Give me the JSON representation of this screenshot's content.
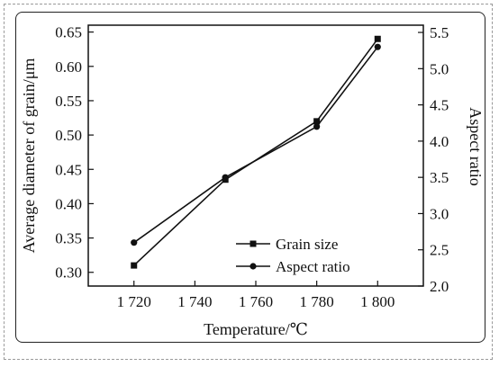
{
  "chart_data": {
    "type": "line",
    "title": "",
    "xlabel": "Temperature/℃",
    "ylabel_left": "Average diameter of grain/μm",
    "ylabel_right": "Aspect ratio",
    "x_categories": [
      1720,
      1750,
      1780,
      1800
    ],
    "x_ticks": [
      1720,
      1740,
      1760,
      1780,
      1800
    ],
    "x_tick_labels": [
      "1 720",
      "1 740",
      "1 760",
      "1 780",
      "1 800"
    ],
    "xlim": [
      1705,
      1815
    ],
    "ylim_left": [
      0.28,
      0.66
    ],
    "ylim_right": [
      2.0,
      5.6
    ],
    "left_ticks": [
      "0.30",
      "0.35",
      "0.40",
      "0.45",
      "0.50",
      "0.55",
      "0.60",
      "0.65"
    ],
    "right_ticks": [
      "2.0",
      "2.5",
      "3.0",
      "3.5",
      "4.0",
      "4.5",
      "5.0",
      "5.5"
    ],
    "grid": false,
    "legend_position": "bottom-right",
    "series": [
      {
        "name": "Grain size",
        "axis": "left",
        "marker": "square",
        "x": [
          1720,
          1750,
          1780,
          1800
        ],
        "y": [
          0.31,
          0.435,
          0.52,
          0.64
        ]
      },
      {
        "name": "Aspect ratio",
        "axis": "right",
        "marker": "circle",
        "x": [
          1720,
          1750,
          1780,
          1800
        ],
        "y": [
          2.6,
          3.5,
          4.2,
          5.3
        ]
      }
    ]
  }
}
